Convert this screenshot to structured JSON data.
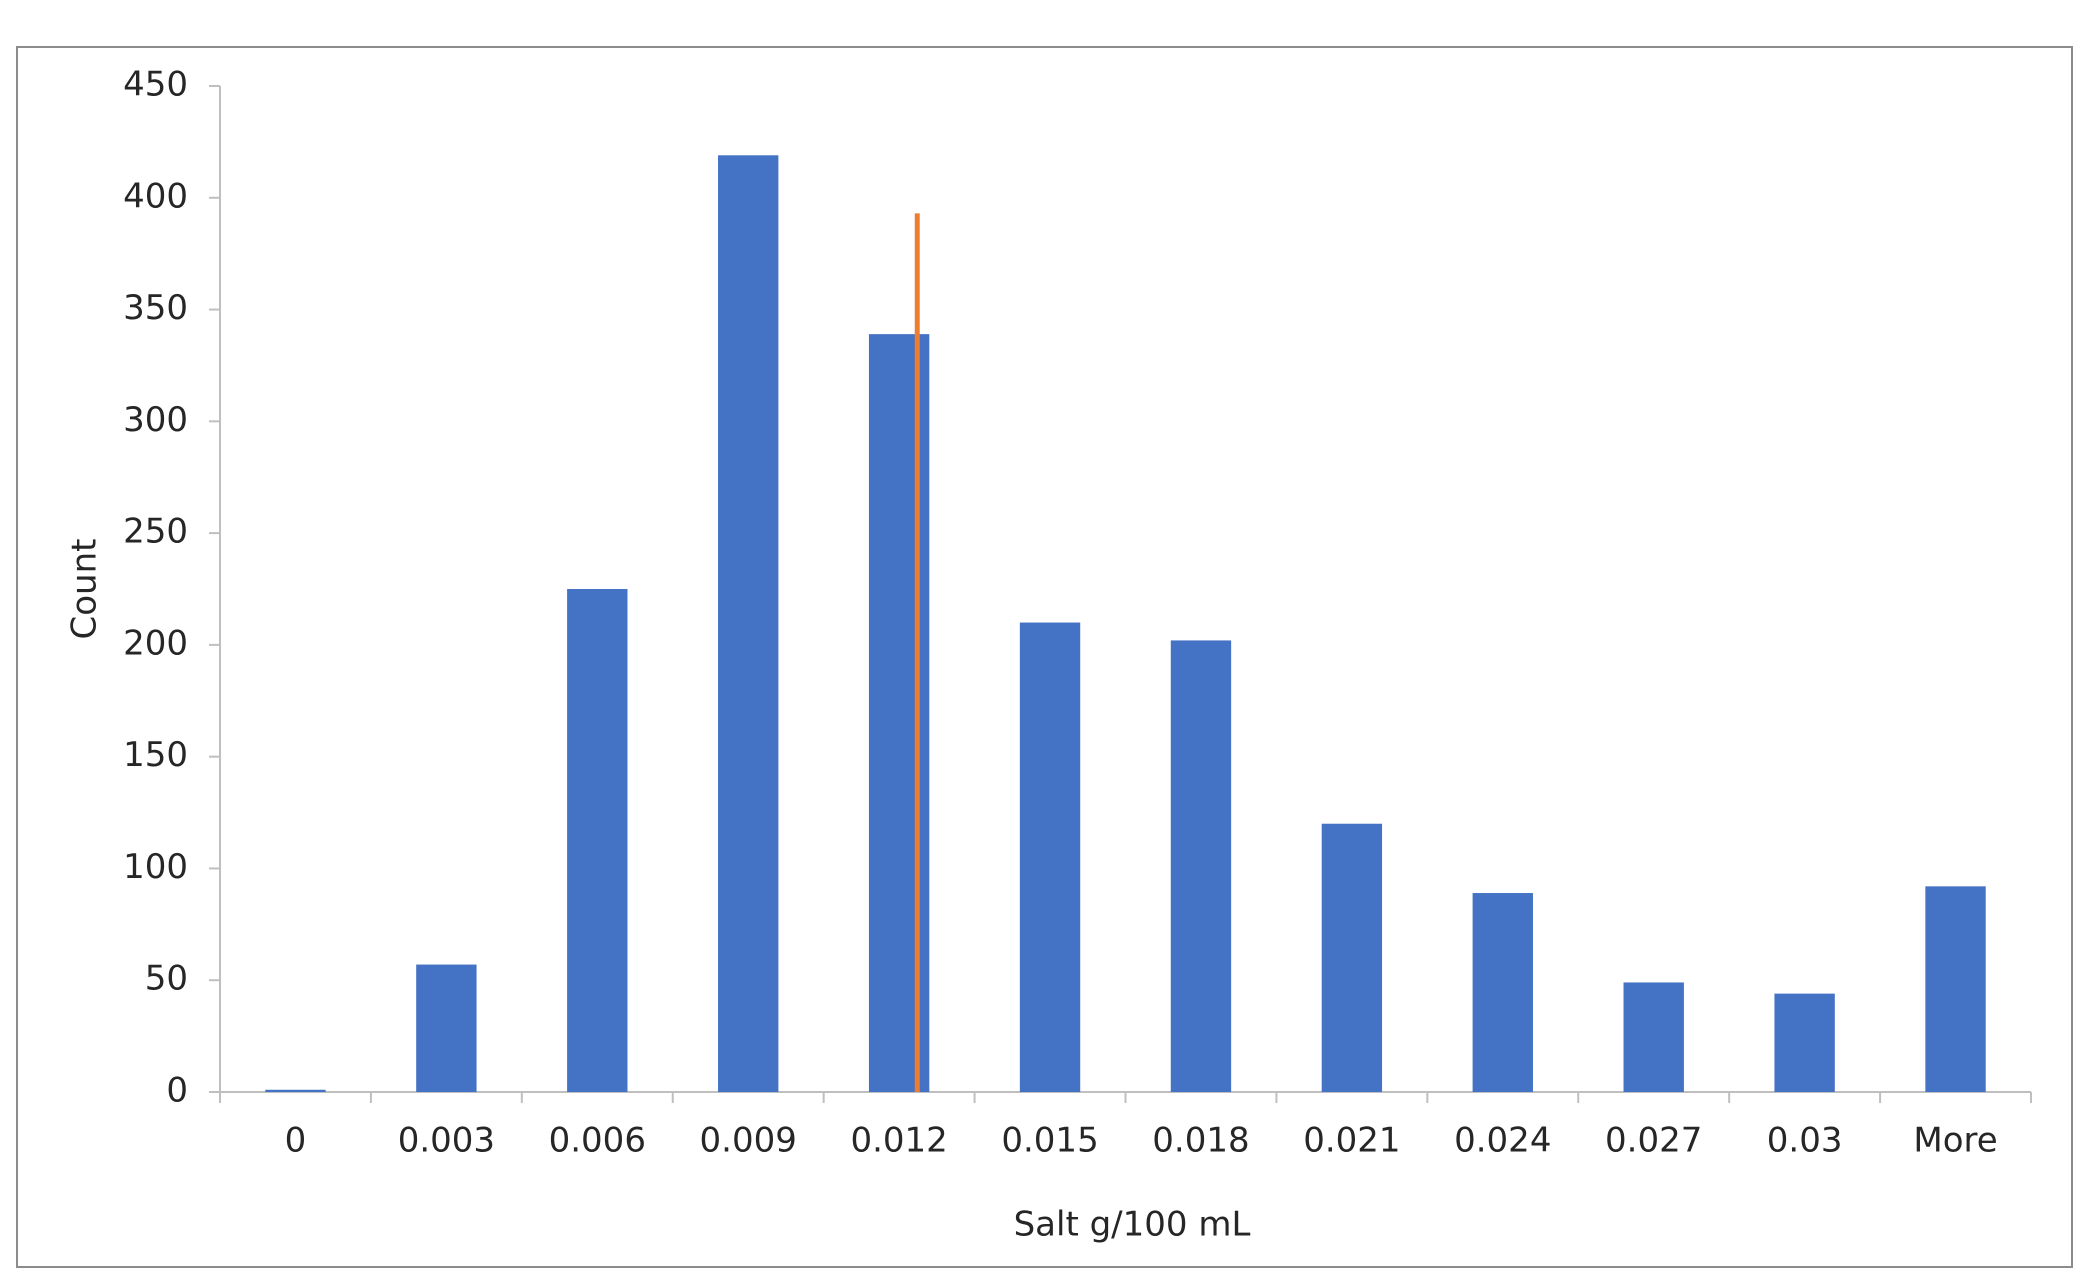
{
  "chart_data": {
    "type": "bar",
    "x_label": "Salt g/100 mL",
    "y_label": "Count",
    "categories": [
      "0",
      "0.003",
      "0.006",
      "0.009",
      "0.012",
      "0.015",
      "0.018",
      "0.021",
      "0.024",
      "0.027",
      "0.03",
      "More"
    ],
    "values": [
      1,
      57,
      225,
      419,
      339,
      210,
      202,
      120,
      89,
      49,
      44,
      92
    ],
    "color": "#4472c4",
    "ylim": [
      0,
      450
    ],
    "yticks": [
      0,
      50,
      100,
      150,
      200,
      250,
      300,
      350,
      400,
      450
    ],
    "grid": false,
    "marker_line": {
      "x": 4.12,
      "y": [
        0,
        393
      ],
      "color": "#ed7d31"
    }
  }
}
